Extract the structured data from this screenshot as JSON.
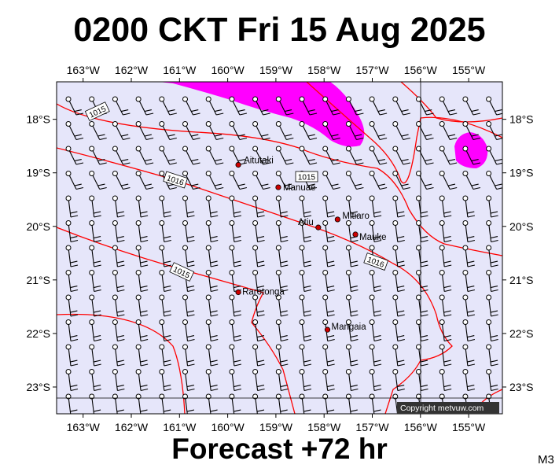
{
  "header": {
    "title": "0200 CKT Fri 15 Aug 2025",
    "forecast": "Forecast +72 hr",
    "model": "M3"
  },
  "map": {
    "longitude_labels": [
      "163°W",
      "162°W",
      "161°W",
      "160°W",
      "159°W",
      "158°W",
      "157°W",
      "156°W",
      "155°W"
    ],
    "latitude_labels": [
      "18°S",
      "19°S",
      "20°S",
      "21°S",
      "22°S",
      "23°S"
    ],
    "lon_range": [
      -163.55,
      -154.3
    ],
    "lat_range": [
      -17.3,
      -23.5
    ],
    "colors": {
      "background": "#e6e6fa",
      "isobar": "#ff0000",
      "rain": "#ff00ff",
      "grid": "#000000",
      "marker": "#cc0000"
    },
    "isobar_labels": [
      "1015",
      "1016",
      "1015",
      "1016",
      "1015"
    ],
    "places": [
      {
        "name": "Aitutaki",
        "lon": -159.78,
        "lat": -18.85
      },
      {
        "name": "Manuae",
        "lon": -158.95,
        "lat": -19.27
      },
      {
        "name": "Mitiaro",
        "lon": -157.72,
        "lat": -19.87
      },
      {
        "name": "Atiu",
        "lon": -158.12,
        "lat": -20.02
      },
      {
        "name": "Mauke",
        "lon": -157.35,
        "lat": -20.15
      },
      {
        "name": "Rarotonga",
        "lon": -159.78,
        "lat": -21.23
      },
      {
        "name": "Mangaia",
        "lon": -157.93,
        "lat": -21.93
      }
    ],
    "copyright": "Copyright metvuw.com"
  }
}
